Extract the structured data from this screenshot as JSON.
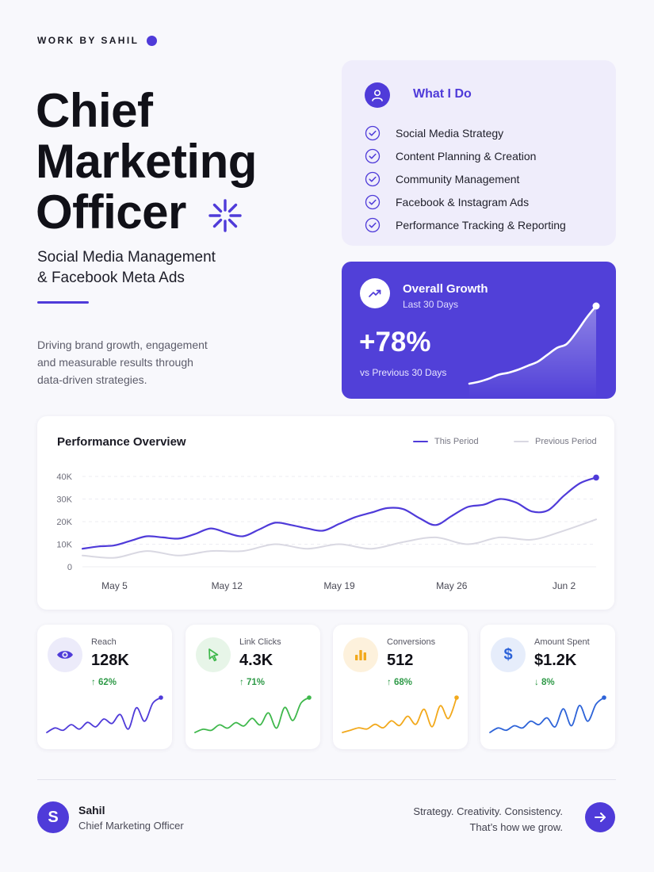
{
  "brand": {
    "text": "WORK BY SAHIL",
    "accent": "#4f3bd9"
  },
  "hero": {
    "title_lines": [
      "Chief",
      "Marketing",
      "Officer"
    ],
    "subtitle_lines": [
      "Social Media Management",
      "& Facebook Meta Ads"
    ],
    "tagline_lines": [
      "Driving brand growth, engagement",
      "and measurable results through",
      "data-driven strategies."
    ],
    "decor_icon": "sparkle-icon"
  },
  "what_i_do": {
    "title": "What I Do",
    "icon": "user-icon",
    "items": [
      "Social Media Strategy",
      "Content Planning & Creation",
      "Community Management",
      "Facebook & Instagram Ads",
      "Performance Tracking & Reporting"
    ]
  },
  "growth": {
    "title": "Overall Growth",
    "subtitle": "Last 30 Days",
    "value": "+78%",
    "compare": "vs Previous 30 Days",
    "icon": "trend-up-icon",
    "spark": [
      0,
      2,
      5,
      9,
      11,
      14,
      18,
      22,
      29,
      36,
      40,
      52,
      66,
      78
    ]
  },
  "performance": {
    "title": "Performance Overview",
    "legend": {
      "current": "This Period",
      "previous": "Previous Period"
    },
    "colors": {
      "current": "#4f3bd9",
      "previous": "#d9d8e2"
    }
  },
  "chart_data": {
    "type": "line",
    "title": "Performance Overview",
    "y_tick_labels": [
      "40K",
      "30K",
      "20K",
      "10K",
      "0"
    ],
    "ylim": [
      0,
      40000
    ],
    "x_tick_labels": [
      "May 5",
      "May 12",
      "May 19",
      "May 26",
      "Jun 2"
    ],
    "x_tick_positions": [
      2,
      9,
      16,
      23,
      30
    ],
    "grid": true,
    "legend_position": "top-right",
    "series": [
      {
        "name": "This Period",
        "x": [
          0,
          1,
          2,
          3,
          4,
          5,
          6,
          7,
          8,
          9,
          10,
          11,
          12,
          13,
          14,
          15,
          16,
          17,
          18,
          19,
          20,
          21,
          22,
          23,
          24,
          25,
          26,
          27,
          28,
          29,
          30,
          31,
          32
        ],
        "values": [
          8000,
          9000,
          9500,
          11500,
          13500,
          13000,
          12500,
          14500,
          17000,
          15000,
          13500,
          16500,
          19500,
          18500,
          17000,
          16000,
          19000,
          22000,
          24000,
          26000,
          25500,
          21500,
          18500,
          22500,
          26500,
          27500,
          30000,
          28500,
          24500,
          25000,
          31500,
          37000,
          39500
        ]
      },
      {
        "name": "Previous Period",
        "x": [
          0,
          2,
          4,
          6,
          8,
          10,
          12,
          14,
          16,
          18,
          20,
          22,
          24,
          26,
          28,
          30,
          32
        ],
        "values": [
          5000,
          4000,
          7000,
          5000,
          7000,
          7000,
          10000,
          8000,
          10000,
          8000,
          11000,
          13000,
          10000,
          13000,
          12000,
          16000,
          21000
        ]
      }
    ]
  },
  "kpis": [
    {
      "label": "Reach",
      "value": "128K",
      "change": "↑ 62%",
      "icon": "eye-icon",
      "icon_glyph": "",
      "color": "#4f3bd9",
      "bg": "#ecebfa",
      "change_color": "#2f9a48",
      "spark": [
        2,
        6,
        4,
        9,
        5,
        11,
        7,
        14,
        10,
        18,
        5,
        24,
        12,
        28,
        33
      ]
    },
    {
      "label": "Link Clicks",
      "value": "4.3K",
      "change": "↑ 71%",
      "icon": "cursor-icon",
      "icon_glyph": "",
      "color": "#3fb84c",
      "bg": "#e7f5e8",
      "change_color": "#2f9a48",
      "spark": [
        2,
        5,
        4,
        9,
        6,
        11,
        8,
        15,
        9,
        20,
        6,
        25,
        13,
        29,
        34
      ]
    },
    {
      "label": "Conversions",
      "value": "512",
      "change": "↑ 68%",
      "icon": "bar-chart-icon",
      "icon_glyph": "",
      "color": "#f2a91c",
      "bg": "#fdf1dc",
      "change_color": "#2f9a48",
      "spark": [
        2,
        4,
        6,
        5,
        9,
        6,
        12,
        8,
        16,
        9,
        22,
        7,
        25,
        14,
        32
      ]
    },
    {
      "label": "Amount Spent",
      "value": "$1.2K",
      "change": "↓ 8%",
      "icon": "dollar-icon",
      "icon_glyph": "$",
      "color": "#2d63d8",
      "bg": "#e6edfb",
      "change_color": "#2f9a48",
      "spark": [
        2,
        6,
        4,
        8,
        6,
        12,
        9,
        15,
        7,
        23,
        8,
        26,
        12,
        27,
        33
      ]
    }
  ],
  "footer": {
    "avatar_letter": "S",
    "name": "Sahil",
    "role": "Chief Marketing Officer",
    "quote_lines": [
      "Strategy. Creativity. Consistency.",
      "That’s how we grow."
    ],
    "arrow_icon": "arrow-right-icon"
  }
}
